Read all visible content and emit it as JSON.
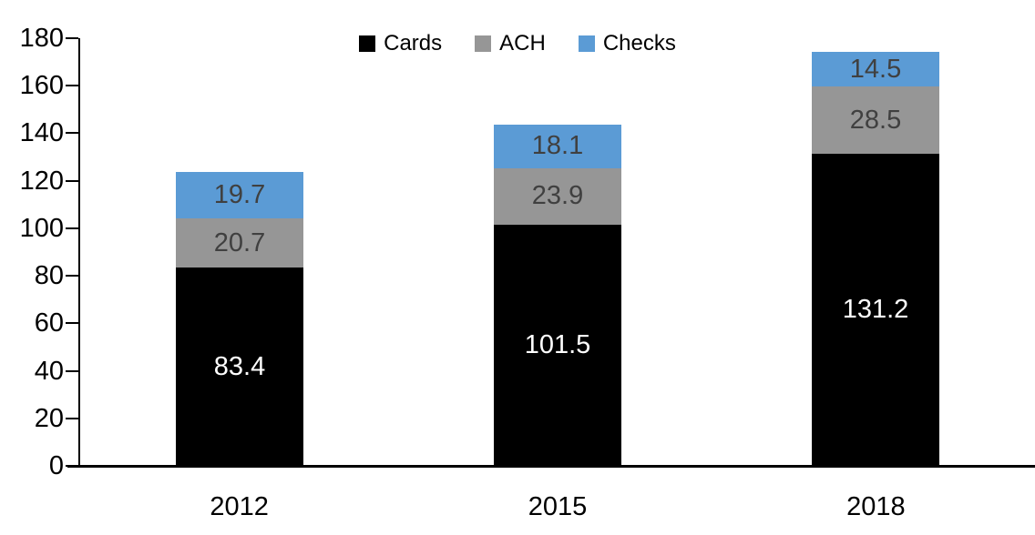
{
  "chart_data": {
    "type": "bar",
    "stacked": true,
    "title": "",
    "xlabel": "",
    "ylabel": "",
    "categories": [
      "2012",
      "2015",
      "2018"
    ],
    "series": [
      {
        "name": "Cards",
        "color": "#000000",
        "label_color": "#ffffff",
        "values": [
          83.4,
          101.5,
          131.2
        ]
      },
      {
        "name": "ACH",
        "color": "#969696",
        "label_color": "#404040",
        "values": [
          20.7,
          23.9,
          28.5
        ]
      },
      {
        "name": "Checks",
        "color": "#5b9bd5",
        "label_color": "#404040",
        "values": [
          19.7,
          18.1,
          14.5
        ]
      }
    ],
    "ylim": [
      0,
      180
    ],
    "yticks": [
      0,
      20,
      40,
      60,
      80,
      100,
      120,
      140,
      160,
      180
    ],
    "grid": false,
    "legend_position": "top",
    "axis_color": "#000000"
  }
}
